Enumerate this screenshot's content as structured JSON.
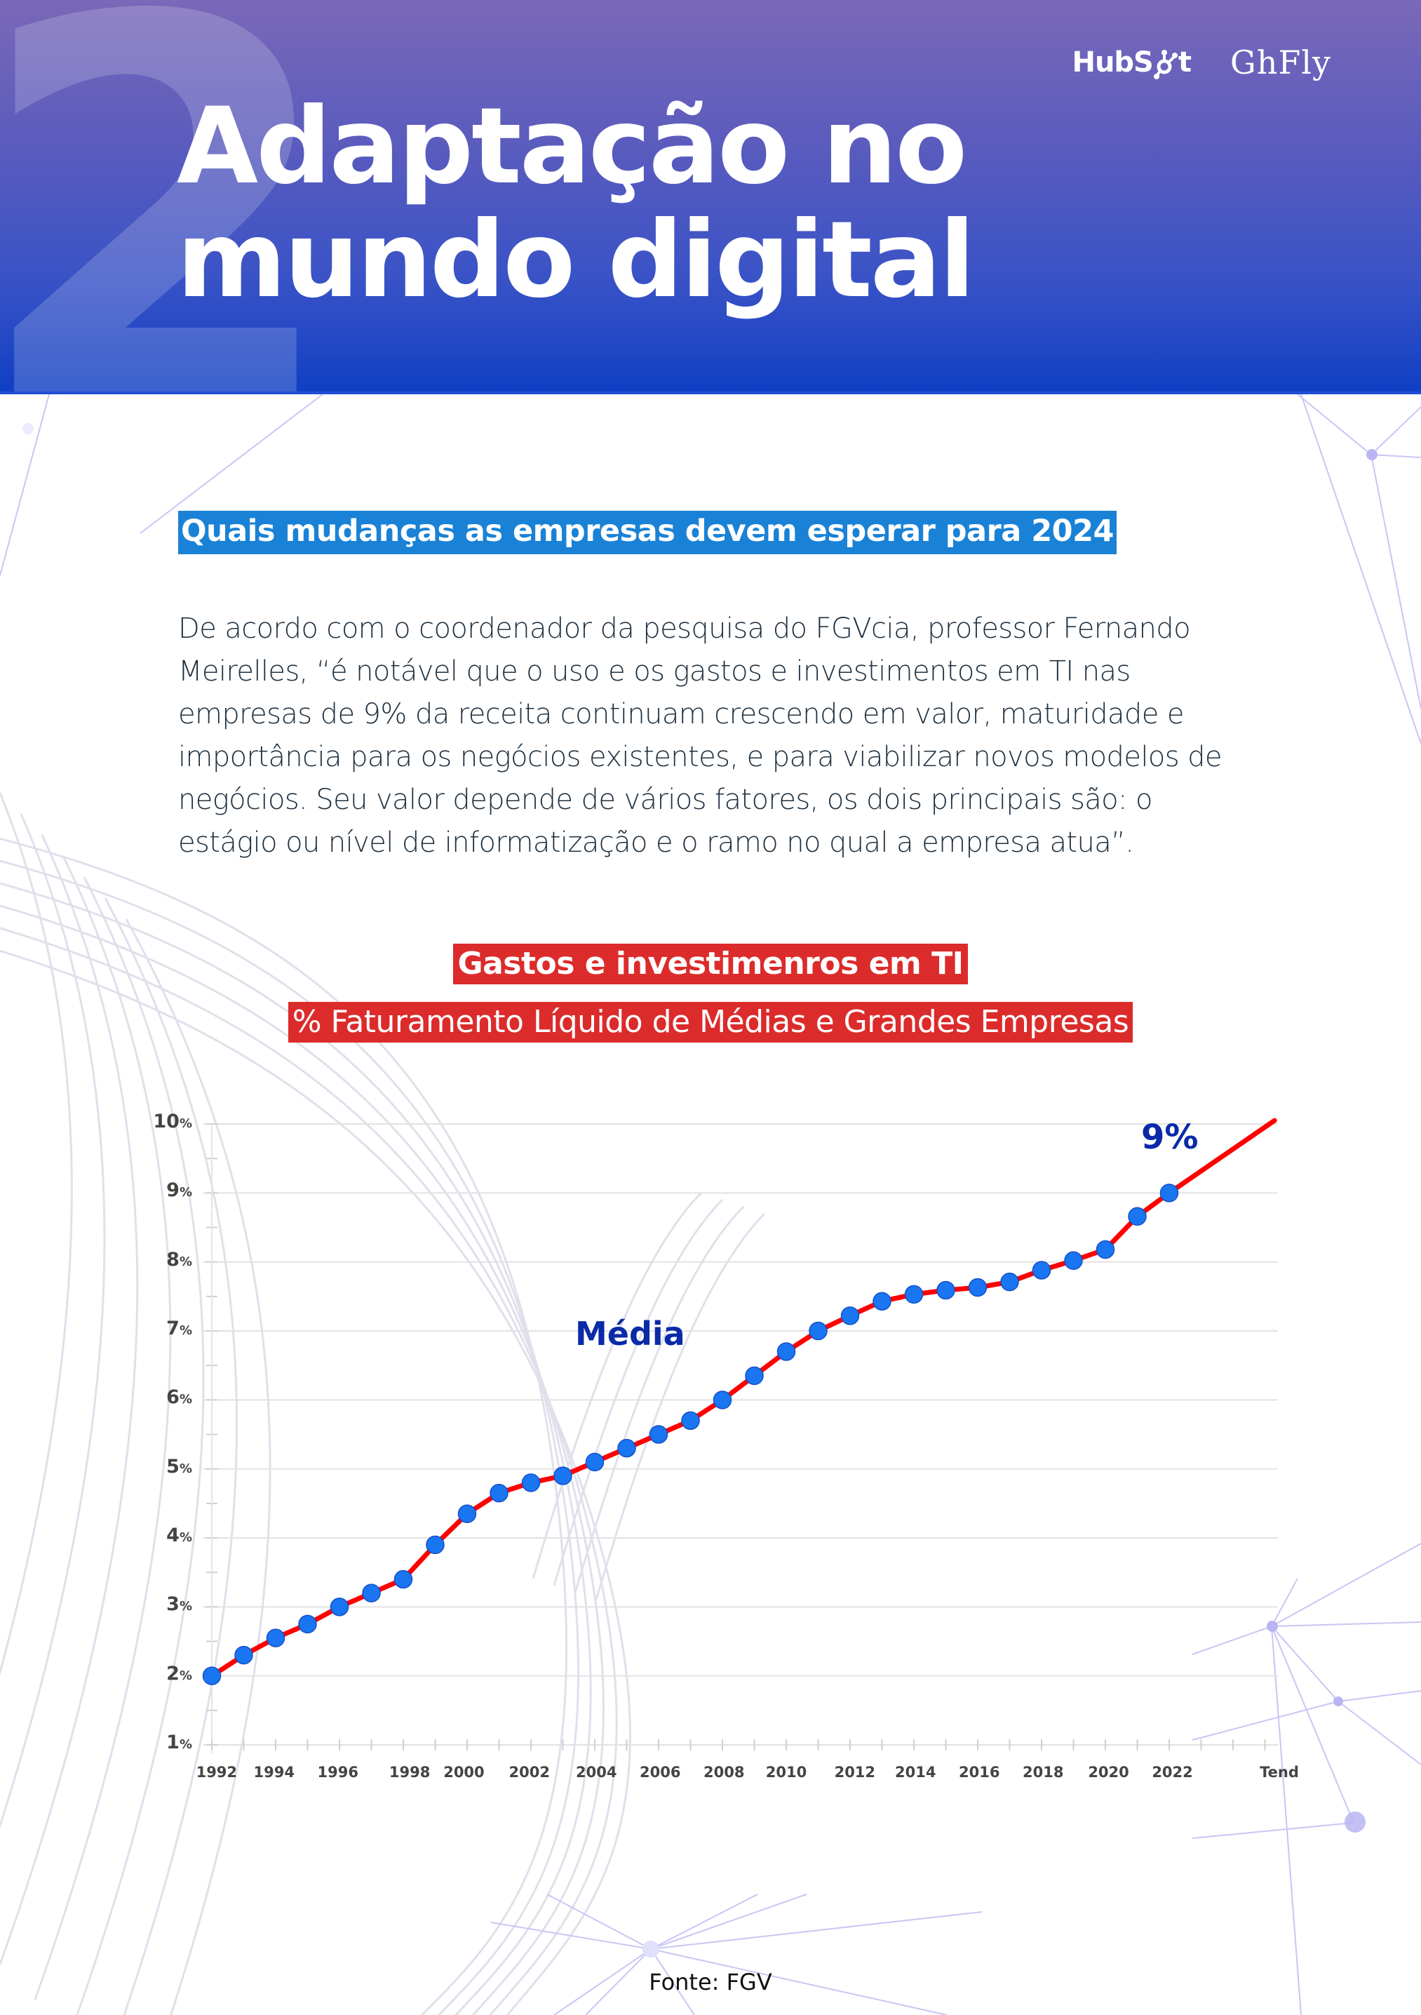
{
  "header": {
    "section_number": "2",
    "title_line1": "Adaptação no",
    "title_line2": "mundo digital",
    "logos": [
      "HubSpot",
      "GhFly"
    ],
    "gradient_top": "#7a68b8",
    "gradient_bottom": "#0f3fc4"
  },
  "section": {
    "heading": "Quais mudanças as empresas devem esperar para 2024",
    "heading_bg": "#1a82d6",
    "body": "De acordo com o coordenador da pesquisa do FGVcia, professor Fernando Meirelles, “é notável que o uso e os gastos e investimentos em TI nas empresas de 9% da receita continuam crescendo em valor, maturidade e importância para os negócios existentes, e para viabilizar novos modelos de negócios. Seu valor depende de vários fatores, os dois principais são: o estágio ou nível de informatização e o ramo no qual a empresa atua”."
  },
  "chart_header": {
    "title": "Gastos e investimenros em TI",
    "subtitle": "% Faturamento Líquido de Médias e Grandes Empresas",
    "bg": "#dc2b2b"
  },
  "chart_data": {
    "type": "line",
    "title": "Gastos e investimenros em TI",
    "subtitle": "% Faturamento Líquido de Médias e Grandes Empresas",
    "xlabel": "",
    "ylabel": "",
    "ylim": [
      1,
      10
    ],
    "y_ticks": [
      "1%",
      "2%",
      "3%",
      "4%",
      "5%",
      "6%",
      "7%",
      "8%",
      "9%",
      "10%"
    ],
    "x_tick_labels": [
      "1992",
      "1994",
      "1996",
      "1998",
      "2000",
      "2002",
      "2004",
      "2006",
      "2008",
      "2010",
      "2012",
      "2014",
      "2016",
      "2018",
      "2020",
      "2022",
      "Tend"
    ],
    "grid": true,
    "legend": null,
    "series": [
      {
        "name": "Média",
        "line_color": "#ff0000",
        "marker_color": "#1a75f0",
        "x": [
          1992,
          1993,
          1994,
          1995,
          1996,
          1997,
          1998,
          1999,
          2000,
          2001,
          2002,
          2003,
          2004,
          2005,
          2006,
          2007,
          2008,
          2009,
          2010,
          2011,
          2012,
          2013,
          2014,
          2015,
          2016,
          2017,
          2018,
          2019,
          2020,
          2021,
          2022
        ],
        "values": [
          2.0,
          2.3,
          2.55,
          2.75,
          3.0,
          3.2,
          3.4,
          3.9,
          4.35,
          4.65,
          4.8,
          4.9,
          5.1,
          5.3,
          5.5,
          5.7,
          6.0,
          6.35,
          6.7,
          7.0,
          7.22,
          7.43,
          7.53,
          7.59,
          7.63,
          7.71,
          7.88,
          8.02,
          8.18,
          8.66,
          9.0
        ]
      }
    ],
    "trend": {
      "label": "Tend",
      "from_year": 2022,
      "from_value": 9.0,
      "to_value": 10.05
    },
    "annotations": [
      {
        "text": "Média",
        "color": "#0a2aa8"
      },
      {
        "text": "9%",
        "color": "#0a2aa8"
      }
    ]
  },
  "footer": {
    "source": "Fonte: FGV"
  }
}
